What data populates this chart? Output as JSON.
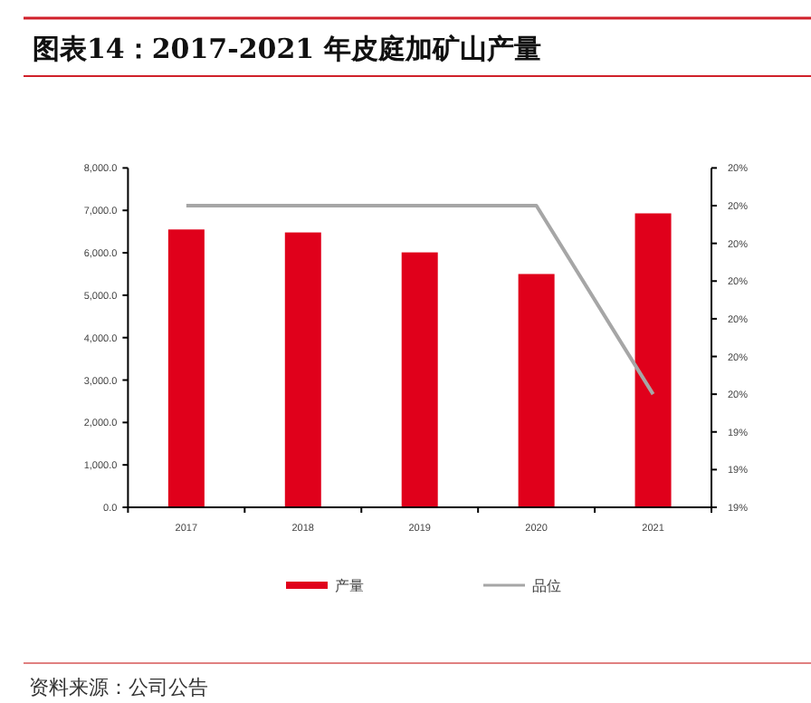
{
  "chart_data": {
    "type": "bar",
    "title": "图表14：2017-2021 年皮庭加矿山产量",
    "categories": [
      "2017",
      "2018",
      "2019",
      "2020",
      "2021"
    ],
    "series": [
      {
        "name": "产量",
        "color": "#e0001b",
        "values": [
          6550,
          6480,
          6010,
          5500,
          6930
        ]
      },
      {
        "name": "品位",
        "type": "line",
        "axis": "y2",
        "color": "#a6a6a6",
        "values": [
          20.0,
          20.0,
          20.0,
          20.0,
          19.5
        ]
      }
    ],
    "ylim": [
      0,
      8000
    ],
    "yticks": [
      {
        "value": 0,
        "label": "0.0"
      },
      {
        "value": 1000,
        "label": "1,000.0"
      },
      {
        "value": 2000,
        "label": "2,000.0"
      },
      {
        "value": 3000,
        "label": "3,000.0"
      },
      {
        "value": 4000,
        "label": "4,000.0"
      },
      {
        "value": 5000,
        "label": "5,000.0"
      },
      {
        "value": 6000,
        "label": "6,000.0"
      },
      {
        "value": 7000,
        "label": "7,000.0"
      },
      {
        "value": 8000,
        "label": "8,000.0"
      }
    ],
    "y2lim": [
      19.2,
      20.1
    ],
    "y2ticks": [
      {
        "value": 19.2,
        "label": "19%"
      },
      {
        "value": 19.3,
        "label": "19%"
      },
      {
        "value": 19.4,
        "label": "19%"
      },
      {
        "value": 19.5,
        "label": "20%"
      },
      {
        "value": 19.6,
        "label": "20%"
      },
      {
        "value": 19.7,
        "label": "20%"
      },
      {
        "value": 19.8,
        "label": "20%"
      },
      {
        "value": 19.9,
        "label": "20%"
      },
      {
        "value": 20.0,
        "label": "20%"
      },
      {
        "value": 20.1,
        "label": "20%"
      }
    ],
    "legend": "bottom",
    "grid": false,
    "annotations": [
      "资料来源：公司公告"
    ]
  }
}
